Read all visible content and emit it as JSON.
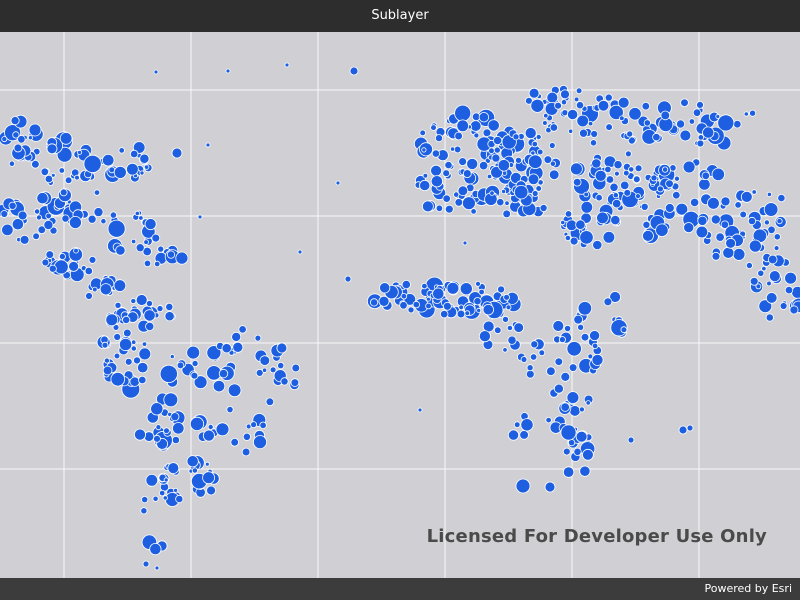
{
  "window": {
    "title": "Sublayer"
  },
  "map": {
    "background_color": "#d0cfd4",
    "gridline_color": "#ffffff",
    "symbol_fill": "#1d5fe0",
    "symbol_outline": "#ffffff",
    "watermark": "Licensed For Developer Use Only"
  },
  "attribution": {
    "text": "Powered by Esri"
  }
}
